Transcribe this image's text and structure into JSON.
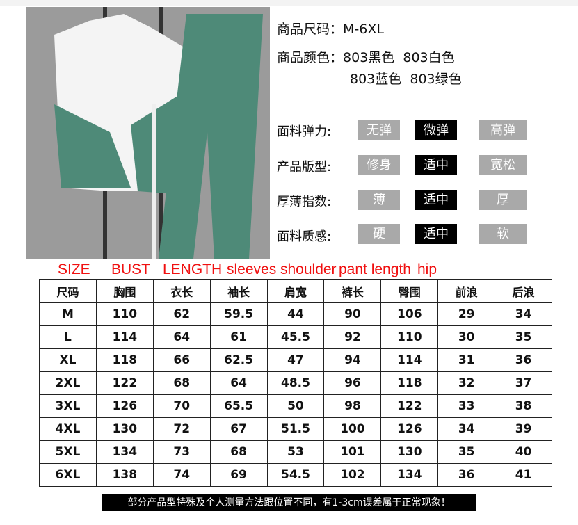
{
  "product": {
    "size_label": "商品尺码：",
    "size_value": "M-6XL",
    "color_label": "商品颜色：",
    "colors": [
      "803黑色",
      "803白色",
      "803蓝色",
      "803绿色"
    ]
  },
  "attributes": [
    {
      "label": "面料弹力:",
      "options": [
        "无弹",
        "微弹",
        "高弹"
      ],
      "selected": 1
    },
    {
      "label": "产品版型:",
      "options": [
        "修身",
        "适中",
        "宽松"
      ],
      "selected": 1
    },
    {
      "label": "厚薄指数:",
      "options": [
        "薄",
        "适中",
        "厚"
      ],
      "selected": 1
    },
    {
      "label": "面料质感:",
      "options": [
        "硬",
        "适中",
        "软"
      ],
      "selected": 1
    }
  ],
  "annotations": {
    "size": "SIZE",
    "bust": "BUST",
    "length": "LENGTH",
    "sleeves": "sleeves",
    "shoulder": "shoulder",
    "pant_length": "pant length",
    "hip": "hip"
  },
  "table": {
    "headers": [
      "尺码",
      "胸围",
      "衣长",
      "袖长",
      "肩宽",
      "裤长",
      "臀围",
      "前浪",
      "后浪"
    ],
    "rows": [
      [
        "M",
        "110",
        "62",
        "59.5",
        "44",
        "90",
        "106",
        "29",
        "34"
      ],
      [
        "L",
        "114",
        "64",
        "61",
        "45.5",
        "92",
        "110",
        "30",
        "35"
      ],
      [
        "XL",
        "118",
        "66",
        "62.5",
        "47",
        "94",
        "114",
        "31",
        "36"
      ],
      [
        "2XL",
        "122",
        "68",
        "64",
        "48.5",
        "96",
        "118",
        "32",
        "37"
      ],
      [
        "3XL",
        "126",
        "70",
        "65.5",
        "50",
        "98",
        "122",
        "33",
        "38"
      ],
      [
        "4XL",
        "130",
        "72",
        "67",
        "51.5",
        "100",
        "126",
        "34",
        "39"
      ],
      [
        "5XL",
        "134",
        "73",
        "68",
        "53",
        "101",
        "130",
        "35",
        "40"
      ],
      [
        "6XL",
        "138",
        "74",
        "69",
        "54.5",
        "102",
        "134",
        "36",
        "41"
      ]
    ]
  },
  "note": "部分产品型特殊及个人测量方法跟位置不同，有1-3cm误差属于正常现象！"
}
